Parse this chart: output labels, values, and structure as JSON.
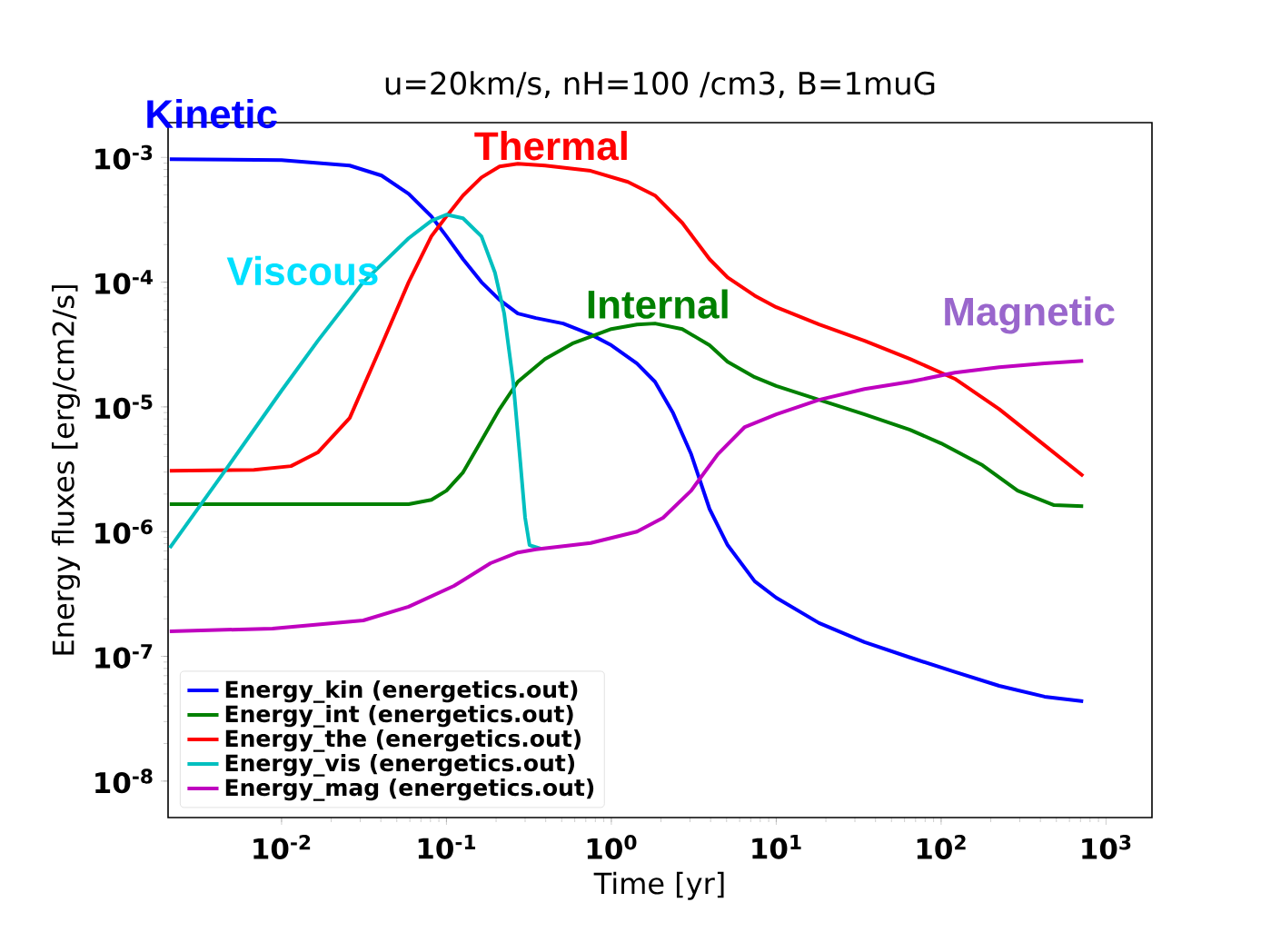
{
  "chart_data": {
    "type": "line",
    "title": "u=20km/s, nH=100 /cm3, B=1muG",
    "xlabel": "Time [yr]",
    "ylabel": "Energy fluxes [erg/cm2/s]",
    "log": "xy",
    "grid": false,
    "legend": "bottom left",
    "marker": "none",
    "line_style": "solid",
    "xlim": [
      0.00205,
      1900
    ],
    "ylim": [
      5.1e-09,
      0.0019
    ],
    "xticks": [
      {
        "value": 0.01,
        "label": "10$^{-2}$"
      },
      {
        "value": 0.1,
        "label": "10$^{-1}$"
      },
      {
        "value": 1,
        "label": "10$^{0}$"
      },
      {
        "value": 10,
        "label": "10$^{1}$"
      },
      {
        "value": 100,
        "label": "10$^{2}$"
      },
      {
        "value": 1000,
        "label": "10$^{3}$"
      }
    ],
    "yticks": [
      {
        "value": 1e-08,
        "label": "10$^{-8}$"
      },
      {
        "value": 1e-07,
        "label": "10$^{-7}$"
      },
      {
        "value": 1e-06,
        "label": "10$^{-6}$"
      },
      {
        "value": 1e-05,
        "label": "10$^{-5}$"
      },
      {
        "value": 0.0001,
        "label": "10$^{-4}$"
      },
      {
        "value": 0.001,
        "label": "10$^{-3}$"
      }
    ],
    "annotations": [
      "Kinetic",
      "Internal",
      "Thermal",
      "Viscous",
      "Magnetic"
    ],
    "series": [
      {
        "name": "Energy_kin (energetics.out)",
        "color": "#0000ff",
        "x": [
          0.0021,
          0.01,
          0.0259,
          0.0404,
          0.059,
          0.081,
          0.1,
          0.126,
          0.163,
          0.21,
          0.271,
          0.349,
          0.51,
          0.75,
          1,
          1.43,
          1.84,
          2.37,
          3.05,
          3.94,
          5.07,
          7.4,
          10,
          18.2,
          34.3,
          64.7,
          121,
          225,
          424,
          727
        ],
        "values": [
          0.000967,
          0.00095,
          0.00086,
          0.000715,
          0.00051,
          0.000337,
          0.000233,
          0.000153,
          0.0001,
          7.2e-05,
          5.6e-05,
          5.15e-05,
          4.66e-05,
          3.81e-05,
          3.12e-05,
          2.23e-05,
          1.59e-05,
          8.9e-06,
          4.17e-06,
          1.52e-06,
          7.8e-07,
          4e-07,
          2.95e-07,
          1.85e-07,
          1.3e-07,
          9.8e-08,
          7.5e-08,
          5.8e-08,
          4.75e-08,
          4.37e-08
        ]
      },
      {
        "name": "Energy_int (energetics.out)",
        "color": "#008000",
        "x": [
          0.0021,
          0.059,
          0.081,
          0.1,
          0.126,
          0.163,
          0.21,
          0.271,
          0.396,
          0.58,
          1,
          1.43,
          1.84,
          2.69,
          3.94,
          5.07,
          7.4,
          10,
          18.2,
          34.3,
          64.7,
          100,
          178,
          291,
          484,
          727
        ],
        "values": [
          1.66e-06,
          1.66e-06,
          1.8e-06,
          2.13e-06,
          2.98e-06,
          5.36e-06,
          9.6e-06,
          1.59e-05,
          2.42e-05,
          3.22e-05,
          4.21e-05,
          4.58e-05,
          4.66e-05,
          4.21e-05,
          3.12e-05,
          2.3e-05,
          1.73e-05,
          1.47e-05,
          1.14e-05,
          8.7e-06,
          6.56e-06,
          5.1e-06,
          3.41e-06,
          2.13e-06,
          1.63e-06,
          1.6e-06
        ]
      },
      {
        "name": "Energy_the (energetics.out)",
        "color": "#ff0000",
        "x": [
          0.0021,
          0.0068,
          0.0114,
          0.0166,
          0.0259,
          0.0404,
          0.059,
          0.081,
          0.1,
          0.126,
          0.163,
          0.21,
          0.271,
          0.396,
          0.75,
          1.26,
          1.84,
          2.69,
          3.94,
          5.07,
          7.4,
          10,
          18.2,
          34.3,
          64.7,
          121,
          225,
          424,
          727
        ],
        "values": [
          3.08e-06,
          3.13e-06,
          3.35e-06,
          4.31e-06,
          8.15e-06,
          3.12e-05,
          0.0001,
          0.000233,
          0.000337,
          0.000495,
          0.00069,
          0.000845,
          0.00089,
          0.00086,
          0.00078,
          0.000636,
          0.000495,
          0.000299,
          0.000153,
          0.000109,
          7.8e-05,
          6.3e-05,
          4.58e-05,
          3.39e-05,
          2.42e-05,
          1.68e-05,
          9.6e-06,
          4.93e-06,
          2.79e-06
        ]
      },
      {
        "name": "Energy_vis (energetics.out)",
        "color": "#00bfbf",
        "x": [
          0.0021,
          0.00467,
          0.01,
          0.0166,
          0.0313,
          0.059,
          0.081,
          0.1,
          0.126,
          0.163,
          0.197,
          0.224,
          0.254,
          0.278,
          0.3,
          0.319,
          0.372
        ],
        "values": [
          7.4e-07,
          3.24e-06,
          1.35e-05,
          3.39e-05,
          0.0001,
          0.000225,
          0.00031,
          0.000348,
          0.000325,
          0.000233,
          0.000119,
          5.6e-05,
          1.59e-05,
          4.17e-06,
          1.29e-06,
          7.8e-07,
          7.3e-07
        ]
      },
      {
        "name": "Energy_mag (energetics.out)",
        "color": "#bf00bf",
        "x": [
          0.0021,
          0.0088,
          0.0313,
          0.059,
          0.111,
          0.185,
          0.271,
          0.349,
          0.75,
          1.43,
          2.06,
          3.05,
          4.42,
          6.45,
          10,
          18.2,
          34.3,
          64.7,
          121,
          225,
          424,
          727
        ],
        "values": [
          1.59e-07,
          1.67e-07,
          1.94e-07,
          2.5e-07,
          3.67e-07,
          5.58e-07,
          6.8e-07,
          7.2e-07,
          8.1e-07,
          1e-06,
          1.29e-06,
          2.13e-06,
          4.17e-06,
          6.9e-06,
          8.7e-06,
          1.14e-05,
          1.39e-05,
          1.59e-05,
          1.88e-05,
          2.08e-05,
          2.23e-05,
          2.34e-05
        ]
      }
    ]
  }
}
